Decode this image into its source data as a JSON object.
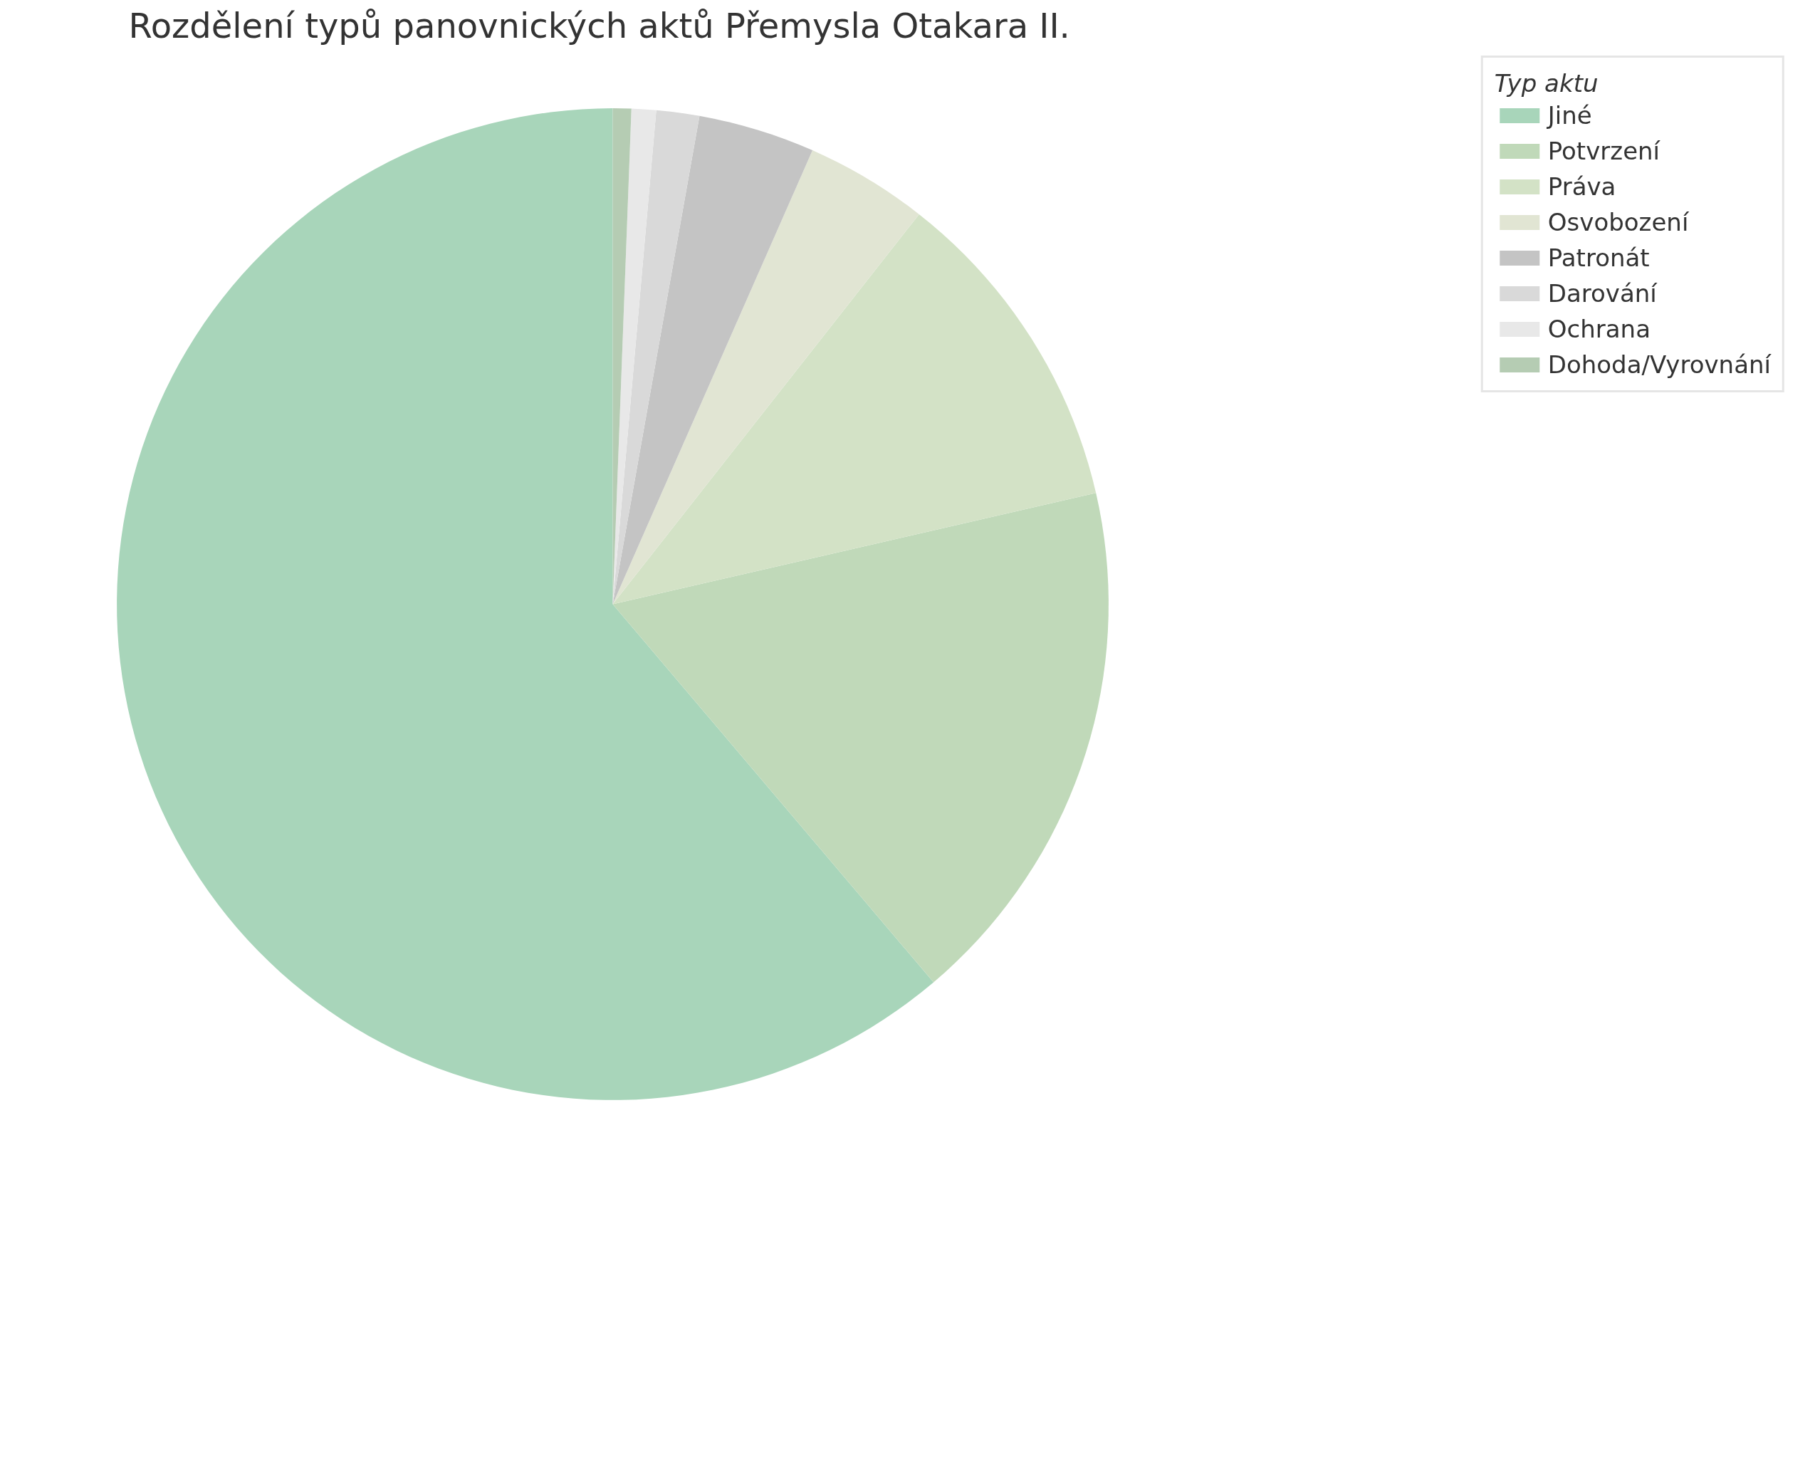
{
  "chart_data": {
    "type": "pie",
    "title": "Rozdělení typů panovnických aktů Přemysla Otakara II.",
    "legend_title": "Typ aktu",
    "legend": "right",
    "categories": [
      "Jiné",
      "Potvrzení",
      "Práva",
      "Osvobození",
      "Patronát",
      "Darování",
      "Ochrana",
      "Dohoda/Vyrovnání"
    ],
    "values": [
      61.2,
      17.4,
      10.8,
      4.0,
      3.8,
      1.4,
      0.8,
      0.6
    ],
    "colors": [
      "#a8d5ba",
      "#c0d9b9",
      "#d3e2c6",
      "#e1e5d3",
      "#c4c4c4",
      "#d9d9d9",
      "#e8e8e8",
      "#b5ccb3"
    ]
  }
}
